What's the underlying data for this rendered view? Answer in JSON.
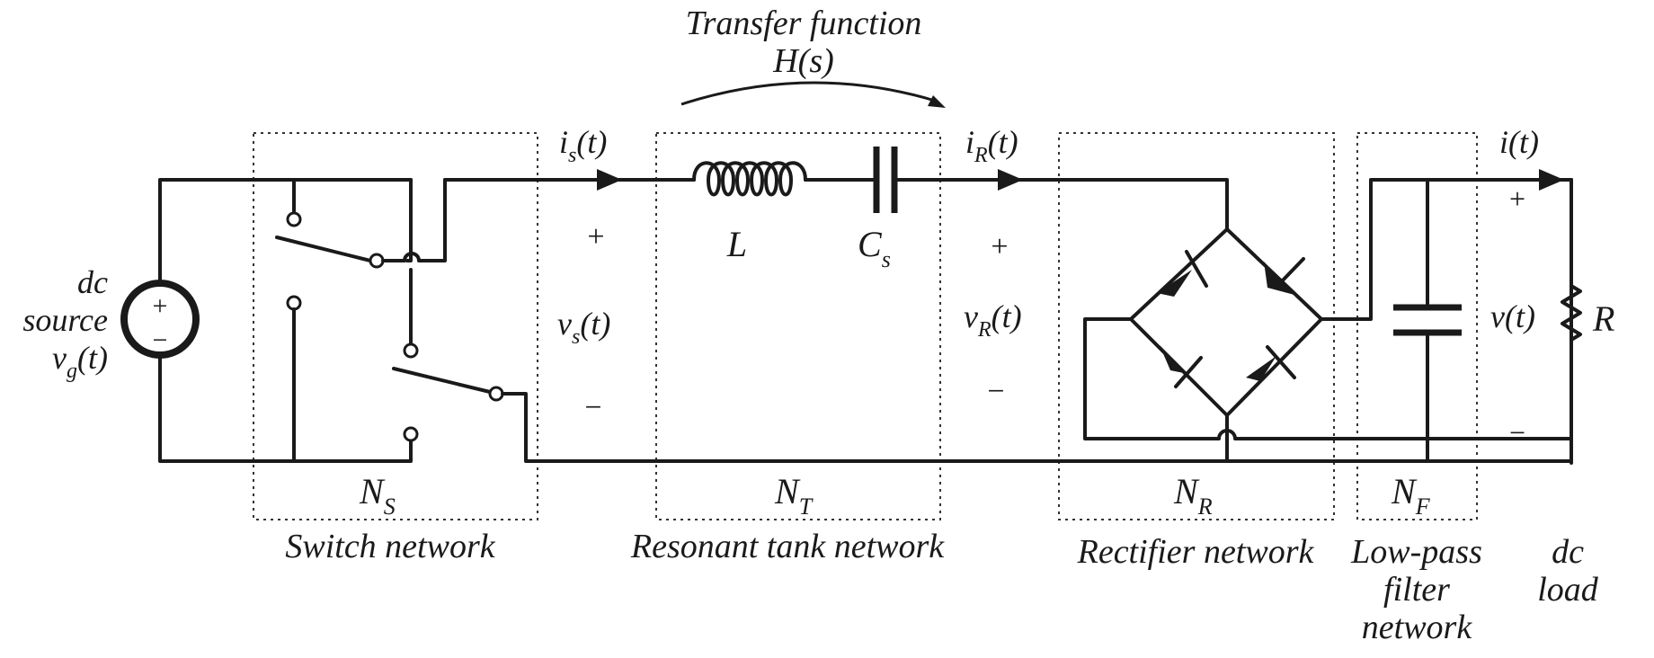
{
  "title": {
    "line1": "Transfer function",
    "line2": "H(s)"
  },
  "source": {
    "line1": "dc",
    "line2": "source",
    "var": "v",
    "sub": "g",
    "arg": "(t)",
    "plus": "+",
    "minus": "−"
  },
  "networks": {
    "switch": {
      "name": "Switch network",
      "sym": "N",
      "sub": "S"
    },
    "tank": {
      "name": "Resonant tank network",
      "sym": "N",
      "sub": "T"
    },
    "rectifier": {
      "name": "Rectifier network",
      "sym": "N",
      "sub": "R"
    },
    "filter": {
      "line1": "Low-pass",
      "line2": "filter",
      "line3": "network",
      "sym": "N",
      "sub": "F"
    },
    "load": {
      "line1": "dc",
      "line2": "load"
    }
  },
  "signals": {
    "is": {
      "var": "i",
      "sub": "s",
      "arg": "(t)"
    },
    "vs": {
      "var": "v",
      "sub": "s",
      "arg": "(t)",
      "plus": "+",
      "minus": "−"
    },
    "iR": {
      "var": "i",
      "sub": "R",
      "arg": "(t)"
    },
    "vR": {
      "var": "v",
      "sub": "R",
      "arg": "(t)",
      "plus": "+",
      "minus": "−"
    },
    "i": {
      "text": "i(t)"
    },
    "v": {
      "text": "v(t)",
      "plus": "+",
      "minus": "−"
    }
  },
  "components": {
    "inductor": "L",
    "capacitor": {
      "var": "C",
      "sub": "s"
    },
    "resistor": "R"
  }
}
